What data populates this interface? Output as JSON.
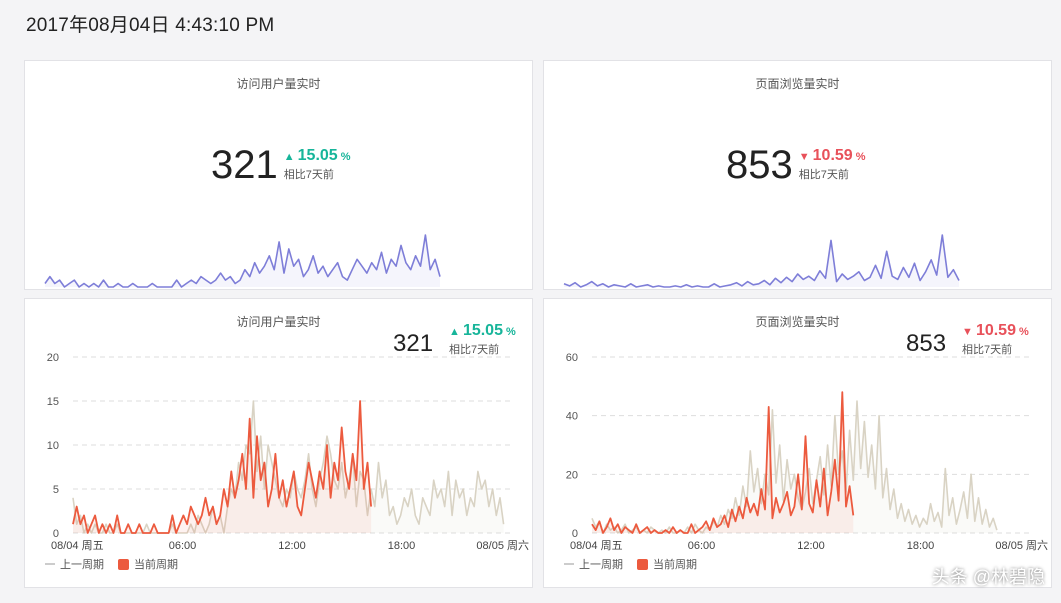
{
  "page": {
    "timestamp": "2017年08月04日 4:43:10 PM",
    "watermark": "头条 @林碧隐"
  },
  "colors": {
    "spark": "#7e7ed8",
    "current": "#ec5a3e",
    "previous": "#d9d3c4",
    "up": "#17b59a",
    "down": "#e8515a",
    "grid": "#dddddd"
  },
  "legend": {
    "previous": "上一周期",
    "current": "当前周期"
  },
  "cards": {
    "uv_top": {
      "title": "访问用户量实时",
      "value": "321",
      "change": "15.05",
      "pct_sign": "%",
      "compare": "相比7天前",
      "arrow": "▲"
    },
    "pv_top": {
      "title": "页面浏览量实时",
      "value": "853",
      "change": "10.59",
      "pct_sign": "%",
      "compare": "相比7天前",
      "arrow": "▼"
    },
    "uv_bottom": {
      "title": "访问用户量实时",
      "value": "321",
      "change": "15.05",
      "pct_sign": "%",
      "compare": "相比7天前",
      "arrow": "▲"
    },
    "pv_bottom": {
      "title": "页面浏览量实时",
      "value": "853",
      "change": "10.59",
      "pct_sign": "%",
      "compare": "相比7天前",
      "arrow": "▼"
    }
  },
  "chart_data": [
    {
      "type": "line",
      "title": "访问用户量实时",
      "x_tick_labels": [
        "08/04 周五",
        "06:00",
        "12:00",
        "18:00",
        "08/05 周六"
      ],
      "y_ticks": [
        0,
        5,
        10,
        15,
        20
      ],
      "ylim": [
        0,
        20
      ],
      "series": [
        {
          "name": "上一周期",
          "values": [
            4,
            1,
            2,
            0,
            1,
            0,
            1,
            0,
            0,
            1,
            0,
            0,
            1,
            0,
            0,
            0,
            0,
            0,
            0,
            0,
            1,
            0,
            0,
            0,
            0,
            0,
            0,
            1,
            0,
            0,
            0,
            0,
            1,
            0,
            2,
            1,
            0,
            1,
            3,
            1,
            2,
            0,
            3,
            5,
            4,
            8,
            6,
            10,
            9,
            15,
            7,
            11,
            5,
            10,
            8,
            6,
            4,
            3,
            5,
            4,
            7,
            5,
            4,
            6,
            9,
            5,
            3,
            6,
            8,
            11,
            9,
            6,
            5,
            8,
            4,
            6,
            9,
            3,
            7,
            6,
            2,
            5,
            3,
            8,
            4,
            6,
            2,
            3,
            1,
            2,
            4,
            3,
            5,
            2,
            1,
            4,
            3,
            2,
            6,
            4,
            5,
            3,
            7,
            2,
            6,
            4,
            5,
            2,
            4,
            3,
            7,
            5,
            6,
            3,
            5,
            2,
            4,
            1
          ]
        },
        {
          "name": "当前周期",
          "values": [
            1,
            3,
            1,
            2,
            0,
            1,
            2,
            0,
            1,
            0,
            1,
            0,
            2,
            0,
            0,
            1,
            0,
            0,
            1,
            0,
            0,
            0,
            1,
            0,
            0,
            0,
            0,
            2,
            0,
            1,
            2,
            1,
            3,
            2,
            1,
            2,
            4,
            2,
            3,
            1,
            2,
            5,
            3,
            7,
            4,
            6,
            9,
            5,
            13,
            4,
            11,
            6,
            8,
            3,
            5,
            9,
            4,
            6,
            3,
            5,
            7,
            3,
            2,
            5,
            8,
            6,
            4,
            7,
            5,
            10,
            4,
            8,
            6,
            12,
            7,
            5,
            9,
            6,
            15,
            5,
            8,
            3
          ]
        }
      ]
    },
    {
      "type": "line",
      "title": "页面浏览量实时",
      "x_tick_labels": [
        "08/04 周五",
        "06:00",
        "12:00",
        "18:00",
        "08/05 周六"
      ],
      "y_ticks": [
        0,
        20,
        40,
        60
      ],
      "ylim": [
        0,
        60
      ],
      "series": [
        {
          "name": "上一周期",
          "values": [
            5,
            2,
            4,
            0,
            3,
            1,
            2,
            0,
            1,
            3,
            0,
            1,
            2,
            0,
            1,
            0,
            2,
            1,
            0,
            1,
            0,
            2,
            0,
            0,
            1,
            0,
            2,
            0,
            3,
            1,
            0,
            2,
            1,
            4,
            2,
            6,
            3,
            8,
            5,
            12,
            6,
            16,
            9,
            28,
            14,
            22,
            10,
            20,
            13,
            42,
            17,
            30,
            11,
            25,
            15,
            20,
            12,
            8,
            14,
            22,
            10,
            18,
            26,
            13,
            30,
            16,
            40,
            20,
            28,
            14,
            35,
            18,
            45,
            22,
            38,
            19,
            30,
            15,
            40,
            12,
            22,
            8,
            15,
            5,
            10,
            4,
            8,
            3,
            6,
            2,
            5,
            3,
            10,
            4,
            7,
            2,
            22,
            6,
            12,
            3,
            8,
            14,
            5,
            20,
            4,
            12,
            3,
            8,
            2,
            5,
            1
          ]
        },
        {
          "name": "当前周期",
          "values": [
            3,
            1,
            4,
            0,
            2,
            5,
            1,
            3,
            0,
            2,
            1,
            0,
            3,
            0,
            1,
            2,
            0,
            1,
            0,
            0,
            1,
            0,
            2,
            0,
            1,
            0,
            0,
            3,
            0,
            1,
            2,
            4,
            1,
            5,
            2,
            3,
            6,
            2,
            8,
            4,
            9,
            5,
            12,
            7,
            10,
            6,
            15,
            8,
            43,
            5,
            12,
            7,
            10,
            14,
            6,
            9,
            20,
            8,
            33,
            10,
            7,
            18,
            9,
            22,
            6,
            14,
            25,
            11,
            48,
            9,
            16,
            6
          ]
        }
      ]
    },
    {
      "type": "line",
      "title": "访问用户量实时 (sparkline)",
      "series": [
        {
          "name": "当前周期",
          "values": [
            1,
            3,
            1,
            2,
            0,
            1,
            2,
            0,
            1,
            0,
            1,
            0,
            2,
            0,
            0,
            1,
            0,
            0,
            1,
            0,
            0,
            0,
            1,
            0,
            0,
            0,
            0,
            2,
            0,
            1,
            2,
            1,
            3,
            2,
            1,
            2,
            4,
            2,
            3,
            1,
            2,
            5,
            3,
            7,
            4,
            6,
            9,
            5,
            13,
            4,
            11,
            6,
            8,
            3,
            5,
            9,
            4,
            6,
            3,
            5,
            7,
            3,
            2,
            5,
            8,
            6,
            4,
            7,
            5,
            10,
            4,
            8,
            6,
            12,
            7,
            5,
            9,
            6,
            15,
            5,
            8,
            3
          ]
        }
      ]
    },
    {
      "type": "line",
      "title": "页面浏览量实时 (sparkline)",
      "series": [
        {
          "name": "当前周期",
          "values": [
            3,
            1,
            4,
            0,
            2,
            5,
            1,
            3,
            0,
            2,
            1,
            0,
            3,
            0,
            1,
            2,
            0,
            1,
            0,
            0,
            1,
            0,
            2,
            0,
            1,
            0,
            0,
            3,
            0,
            1,
            2,
            4,
            1,
            5,
            2,
            3,
            6,
            2,
            8,
            4,
            9,
            5,
            12,
            7,
            10,
            6,
            15,
            8,
            43,
            5,
            12,
            7,
            10,
            14,
            6,
            9,
            20,
            8,
            33,
            10,
            7,
            18,
            9,
            22,
            6,
            14,
            25,
            11,
            48,
            9,
            16,
            6
          ]
        }
      ]
    }
  ]
}
